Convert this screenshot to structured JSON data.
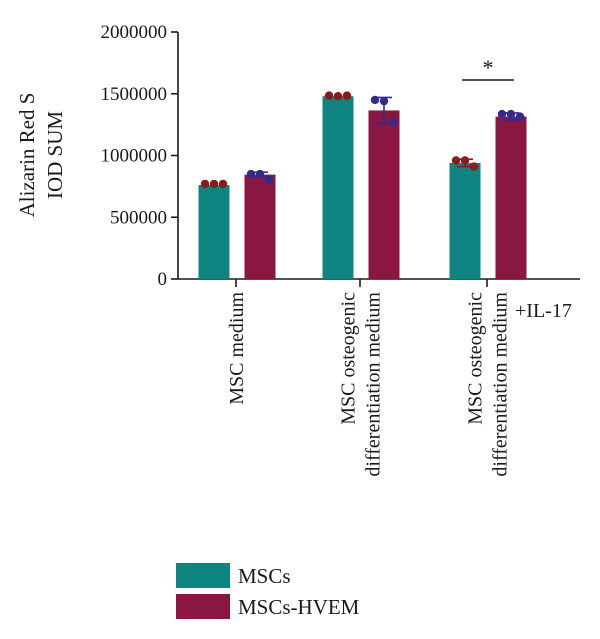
{
  "chart_data": {
    "type": "bar",
    "ylabel": [
      "Alizarin Red S",
      "IOD SUM"
    ],
    "ylim": [
      0,
      2000000
    ],
    "yticks": [
      0,
      500000,
      1000000,
      1500000,
      2000000
    ],
    "yticks_text": [
      "0",
      "500000",
      "1000000",
      "1500000",
      "2000000"
    ],
    "categories": [
      [
        "MSC medium"
      ],
      [
        "MSC osteogenic",
        "differentiation medium"
      ],
      [
        "MSC osteogenic",
        "differentiation medium"
      ]
    ],
    "category_suffix": "+IL-17",
    "series": [
      {
        "name": "MSCs",
        "color": "#0e8480",
        "values": [
          760000,
          1480000,
          940000
        ],
        "errors": [
          0,
          0,
          30000
        ],
        "points": [
          [
            770000,
            770000,
            770000
          ],
          [
            1485000,
            1480000,
            1485000
          ],
          [
            960000,
            960000,
            910000
          ]
        ],
        "point_color": "#8b1a1a"
      },
      {
        "name": "MSCs-HVEM",
        "color": "#8a1742",
        "values": [
          845000,
          1365000,
          1315000
        ],
        "errors": [
          20000,
          105000,
          30000
        ],
        "points": [
          [
            850000,
            850000,
            810000
          ],
          [
            1450000,
            1440000,
            1270000
          ],
          [
            1335000,
            1335000,
            1315000
          ]
        ],
        "point_color": "#352a8a"
      }
    ],
    "significance": {
      "category_index": 2,
      "label": "*"
    },
    "legend": {
      "position": "bottom-left"
    }
  }
}
